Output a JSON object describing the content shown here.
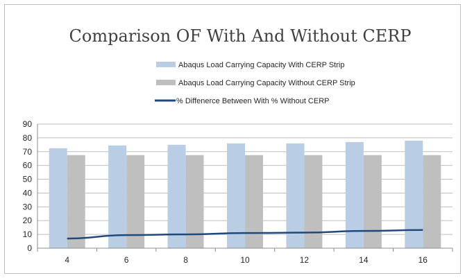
{
  "chart_data": {
    "type": "bar",
    "title": "Comparison OF With And Without CERP",
    "xlabel": "",
    "ylabel": "",
    "categories": [
      "4",
      "6",
      "8",
      "10",
      "12",
      "14",
      "16"
    ],
    "ylim": [
      0,
      90
    ],
    "yticks": [
      "0",
      "10",
      "20",
      "30",
      "40",
      "50",
      "60",
      "70",
      "80",
      "90"
    ],
    "grid": true,
    "legend_position": "top",
    "series": [
      {
        "name": "Abaqus Load Carrying Capacity With CERP Strip",
        "kind": "bar",
        "color": "#b9cde5",
        "values": [
          72.5,
          74.5,
          75,
          76,
          76,
          77,
          78
        ]
      },
      {
        "name": "Abaqus Load Carrying Capacity Without CERP Strip",
        "kind": "bar",
        "color": "#bfbfbf",
        "values": [
          67.5,
          67.5,
          67.5,
          67.5,
          67.5,
          67.5,
          67.5
        ]
      },
      {
        "name": "% Diffenerce Between With % Without CERP",
        "kind": "line",
        "color": "#1f497d",
        "values": [
          7,
          9.5,
          10,
          11,
          11.3,
          12.5,
          13.2
        ]
      }
    ]
  }
}
